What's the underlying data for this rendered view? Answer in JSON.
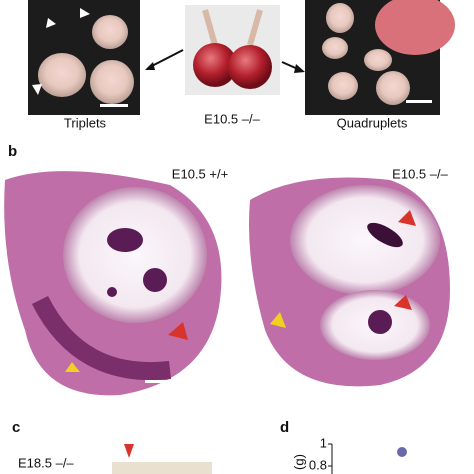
{
  "panel_a": {
    "left_label": "Triplets",
    "center_label": "E10.5 –/–",
    "right_label": "Quadruplets"
  },
  "panel_b": {
    "letter": "b",
    "left_label": "E10.5 +/+",
    "right_label": "E10.5 –/–"
  },
  "panel_c": {
    "letter": "c",
    "label": "E18.5 –/–"
  },
  "panel_d": {
    "letter": "d",
    "axis_label": "(g)",
    "tick_labels": [
      "1",
      "0.8"
    ]
  }
}
